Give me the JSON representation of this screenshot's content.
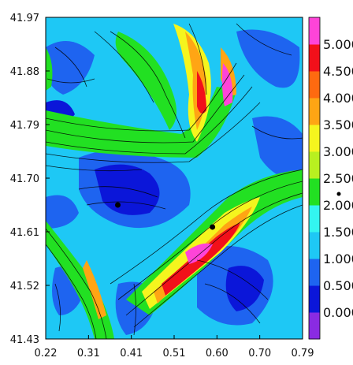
{
  "chart_data": {
    "type": "heatmap",
    "title": "",
    "xlabel": "",
    "ylabel": "",
    "x_ticks": [
      "0.22",
      "0.31",
      "0.41",
      "0.51",
      "0.60",
      "0.70",
      "0.79"
    ],
    "y_ticks": [
      "41.97",
      "41.88",
      "41.79",
      "41.70",
      "41.61",
      "41.52",
      "41.43"
    ],
    "xlim": [
      0.22,
      0.79
    ],
    "ylim": [
      41.43,
      41.97
    ],
    "grid": false,
    "overlay": "streamlines",
    "colorbar": {
      "placement": "right",
      "labels": [
        "0.000",
        "0.500",
        "1.000",
        "1.500",
        "2.000",
        "2.500",
        "3.000",
        "3.500",
        "4.000",
        "4.500",
        "5.000"
      ],
      "colors": [
        "#8a2be2",
        "#0b16d9",
        "#1e64f0",
        "#1ec8f5",
        "#33f5f0",
        "#22e022",
        "#b8f020",
        "#f5f51e",
        "#ffa514",
        "#ff6a10",
        "#f2101a",
        "#ff44d8"
      ]
    },
    "markers": [
      {
        "x": 0.38,
        "y": 41.655
      },
      {
        "x": 0.59,
        "y": 41.618
      }
    ]
  }
}
